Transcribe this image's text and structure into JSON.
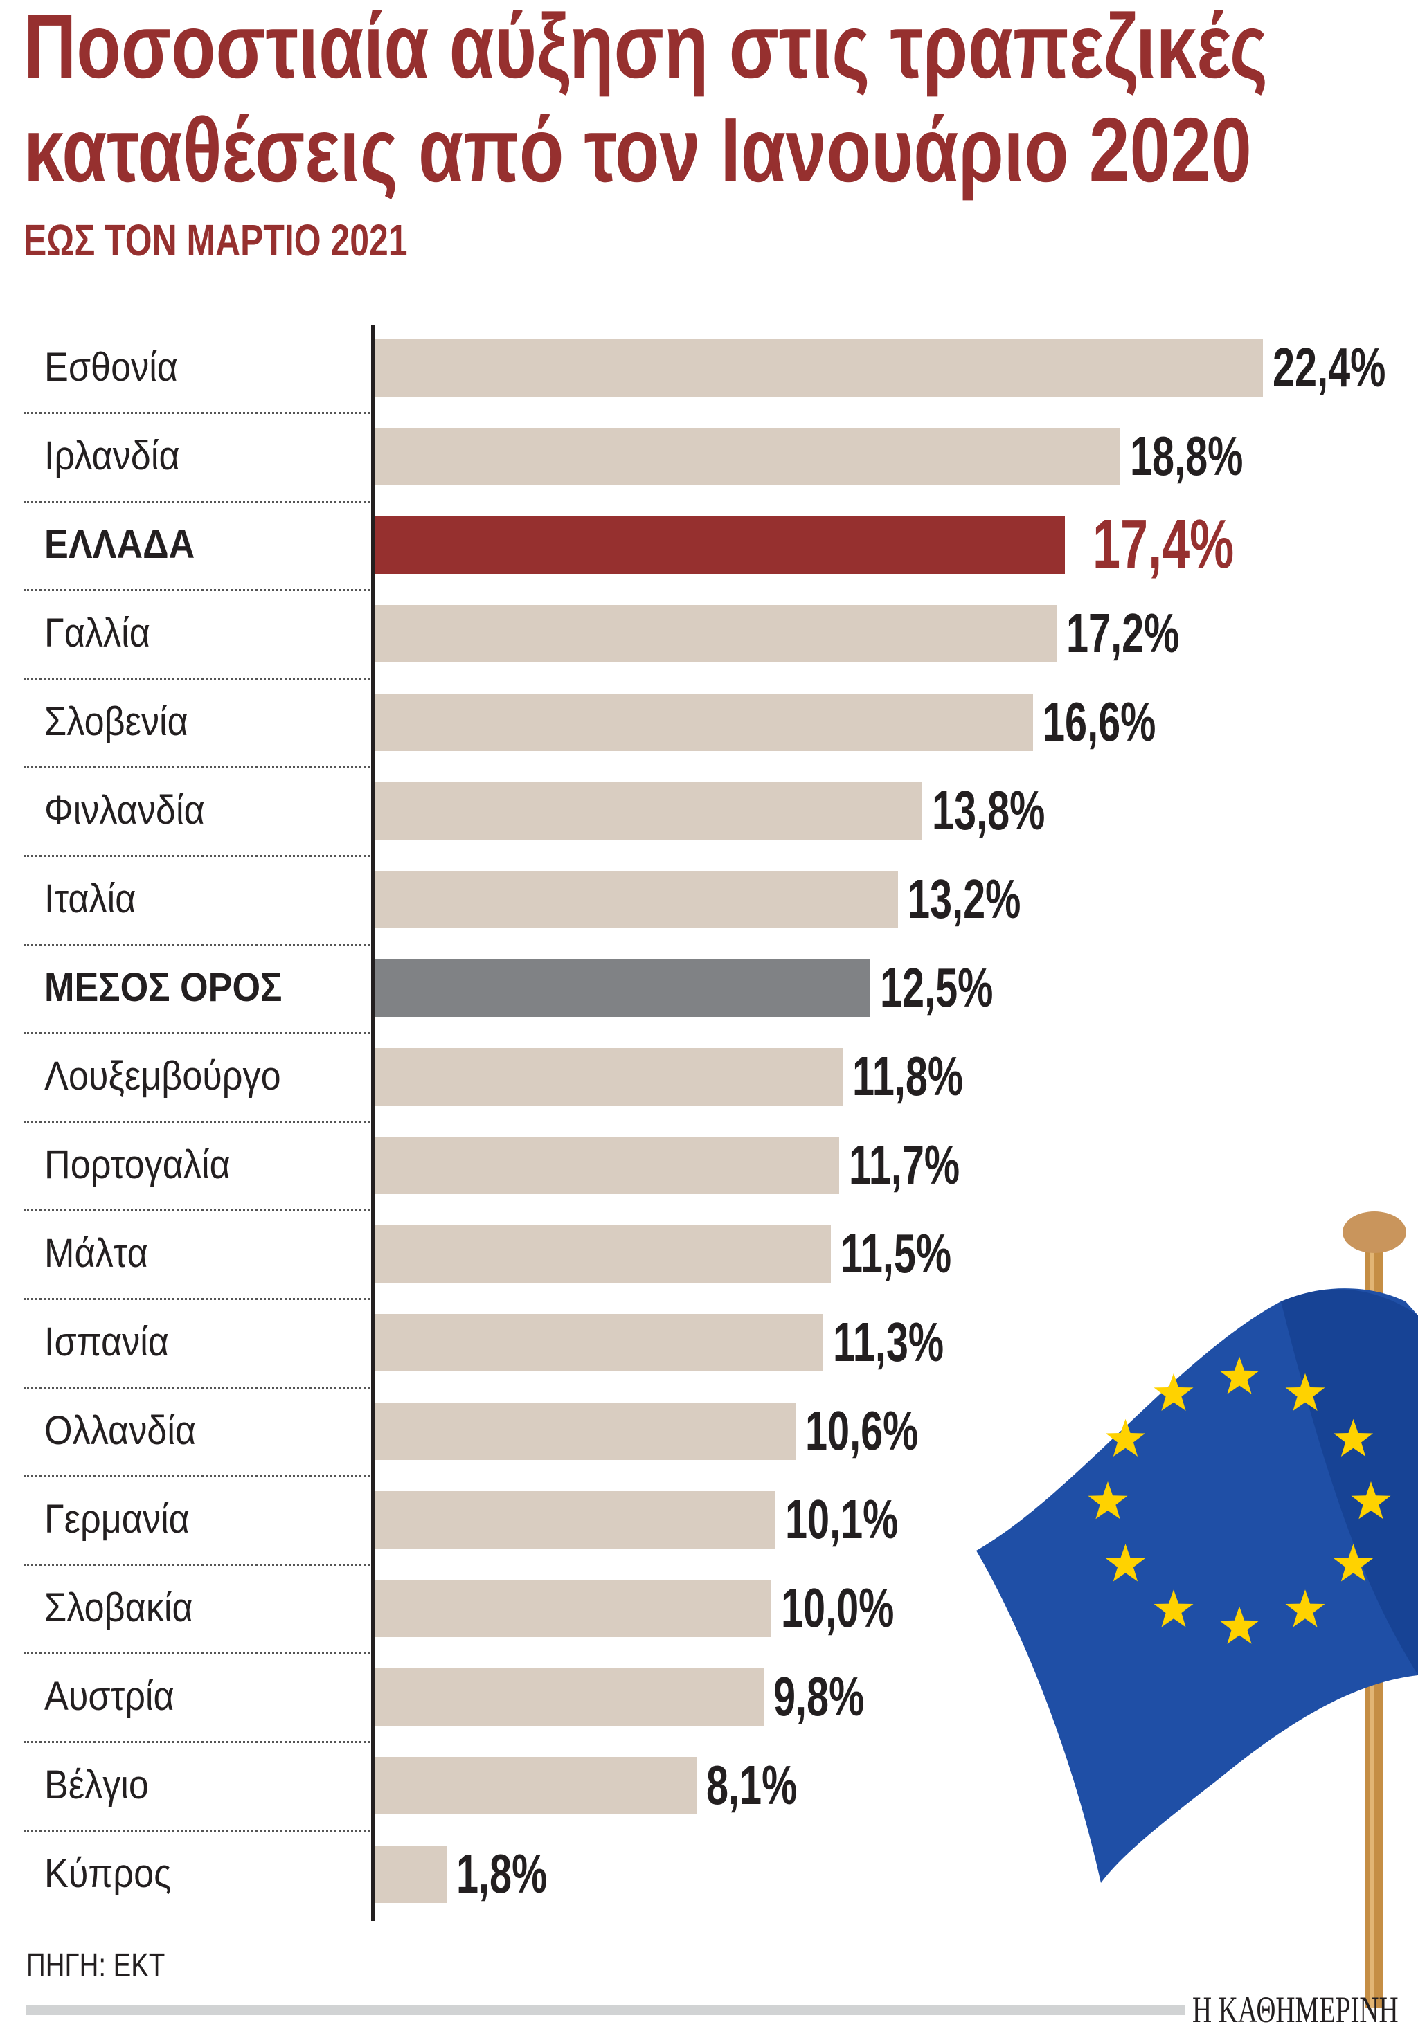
{
  "title_line1": "Ποσοστιαία αύξηση στις τραπεζικές",
  "title_line2": "καταθέσεις από τον Ιανουάριο 2020",
  "subtitle": "ΕΩΣ ΤΟΝ ΜΑΡΤΙΟ 2021",
  "source": "ΠΗΓΗ: ΕΚΤ",
  "logo": "Η ΚΑΘΗΜΕΡΙΝΗ",
  "colors": {
    "accent": "#96302f",
    "bar": "#d9cdc1",
    "average": "#808285",
    "text": "#231f20"
  },
  "chart_data": {
    "type": "bar",
    "orientation": "horizontal",
    "title": "Ποσοστιαία αύξηση στις τραπεζικές καταθέσεις από τον Ιανουάριο 2020",
    "subtitle": "ΕΩΣ ΤΟΝ ΜΑΡΤΙΟ 2021",
    "unit": "%",
    "xlim": [
      0,
      22.4
    ],
    "grid": false,
    "categories": [
      "Εσθονία",
      "Ιρλανδία",
      "ΕΛΛΑΔΑ",
      "Γαλλία",
      "Σλοβενία",
      "Φινλανδία",
      "Ιταλία",
      "ΜΕΣΟΣ ΟΡΟΣ",
      "Λουξεμβούργο",
      "Πορτογαλία",
      "Μάλτα",
      "Ισπανία",
      "Ολλανδία",
      "Γερμανία",
      "Σλοβακία",
      "Αυστρία",
      "Βέλγιο",
      "Κύπρος"
    ],
    "values": [
      22.4,
      18.8,
      17.4,
      17.2,
      16.6,
      13.8,
      13.2,
      12.5,
      11.8,
      11.7,
      11.5,
      11.3,
      10.6,
      10.1,
      10.0,
      9.8,
      8.1,
      1.8
    ],
    "labels": [
      "22,4%",
      "18,8%",
      "17,4%",
      "17,2%",
      "16,6%",
      "13,8%",
      "13,2%",
      "12,5%",
      "11,8%",
      "11,7%",
      "11,5%",
      "11,3%",
      "10,6%",
      "10,1%",
      "10,0%",
      "9,8%",
      "8,1%",
      "1,8%"
    ],
    "highlight": {
      "ΕΛΛΑΔΑ": "#96302f",
      "ΜΕΣΟΣ ΟΡΟΣ": "#808285"
    }
  },
  "decoration": {
    "icon": "eu-flag-icon"
  }
}
